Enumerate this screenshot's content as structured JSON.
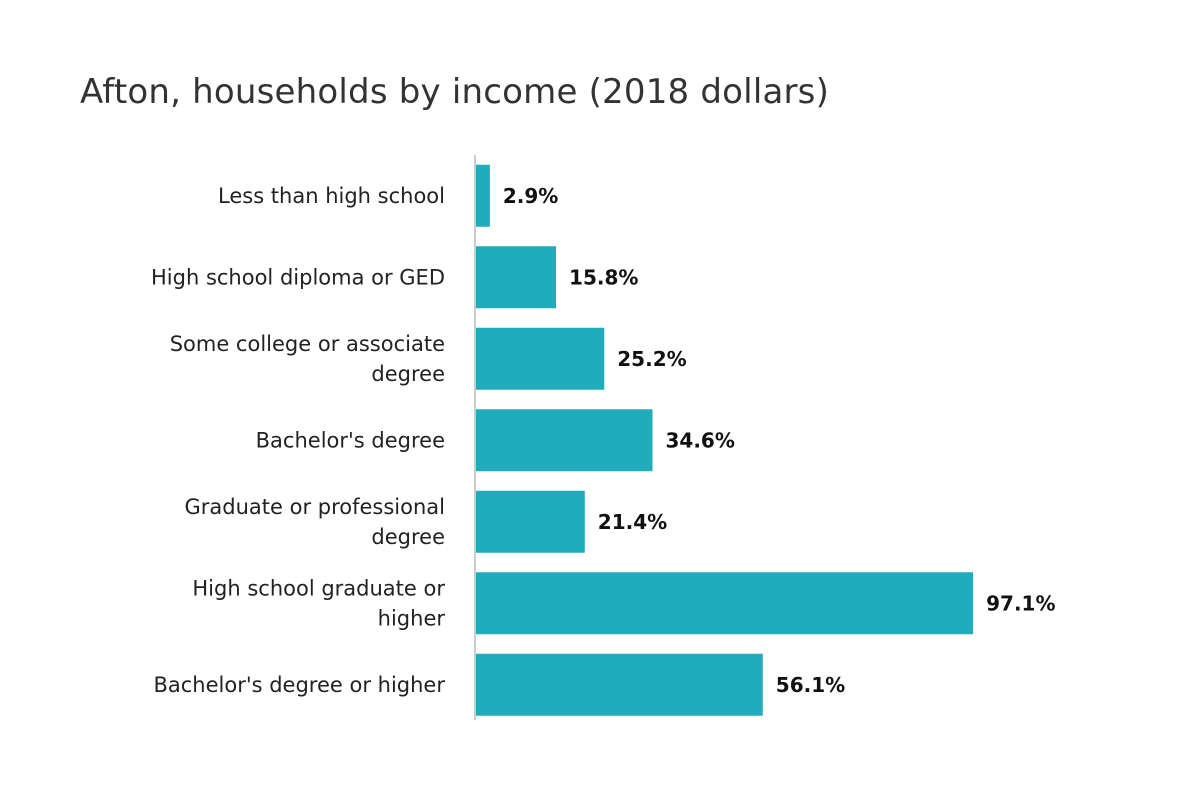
{
  "chart_data": {
    "type": "bar",
    "orientation": "horizontal",
    "title": "Afton, households by income (2018 dollars)",
    "xlabel": "",
    "ylabel": "",
    "categories": [
      "Less than high school",
      "High school diploma or GED",
      "Some college or associate degree",
      "Bachelor's degree",
      "Graduate or professional degree",
      "High school graduate or higher",
      "Bachelor's degree or higher"
    ],
    "values": [
      2.9,
      15.8,
      25.2,
      34.6,
      21.4,
      97.1,
      56.1
    ],
    "value_labels": [
      "2.9%",
      "15.8%",
      "25.2%",
      "34.6%",
      "21.4%",
      "97.1%",
      "56.1%"
    ],
    "xlim": [
      0,
      100
    ],
    "grid": false,
    "legend": "none",
    "bar_color": "#20acbc",
    "axis_color": "#cccccc"
  }
}
